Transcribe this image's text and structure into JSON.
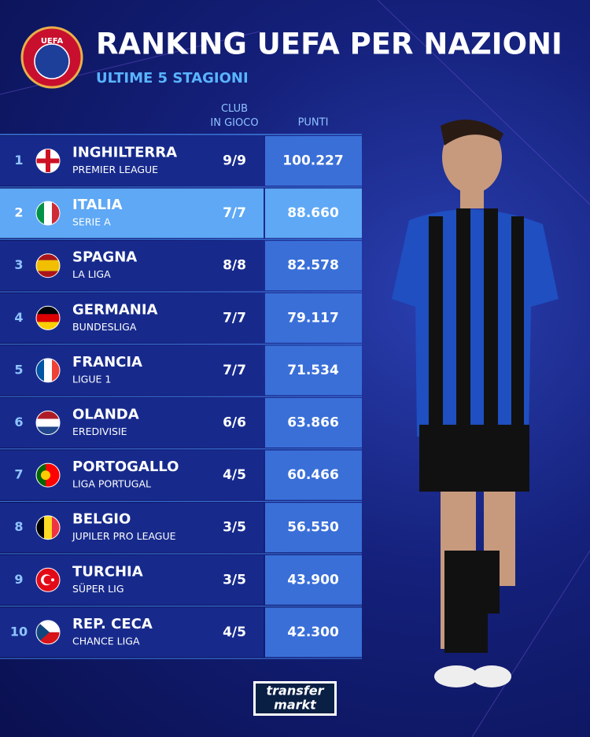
{
  "logo": {
    "text": "UEFA"
  },
  "header": {
    "title": "RANKING UEFA PER NAZIONI",
    "subtitle": "ULTIME 5 STAGIONI"
  },
  "table": {
    "columns": [
      "CLUB IN GIOCO",
      "PUNTI"
    ],
    "rows": [
      [
        "1",
        "INGHILTERRA",
        "PREMIER LEAGUE",
        "9/9",
        "100.227"
      ],
      [
        "2",
        "ITALIA",
        "SERIE A",
        "7/7",
        "88.660"
      ],
      [
        "3",
        "SPAGNA",
        "LA LIGA",
        "8/8",
        "82.578"
      ],
      [
        "4",
        "GERMANIA",
        "BUNDESLIGA",
        "7/7",
        "79.117"
      ],
      [
        "5",
        "FRANCIA",
        "LIGUE 1",
        "7/7",
        "71.534"
      ],
      [
        "6",
        "OLANDA",
        "EREDIVISIE",
        "6/6",
        "63.866"
      ],
      [
        "7",
        "PORTOGALLO",
        "LIGA PORTUGAL",
        "4/5",
        "60.466"
      ],
      [
        "8",
        "BELGIO",
        "JUPILER PRO LEAGUE",
        "3/5",
        "56.550"
      ],
      [
        "9",
        "TURCHIA",
        "SÜPER LIG",
        "3/5",
        "43.900"
      ],
      [
        "10",
        "REP. CECA",
        "CHANCE LIGA",
        "4/5",
        "42.300"
      ]
    ]
  },
  "footer": {
    "brand": [
      "transfer",
      "markt"
    ]
  }
}
